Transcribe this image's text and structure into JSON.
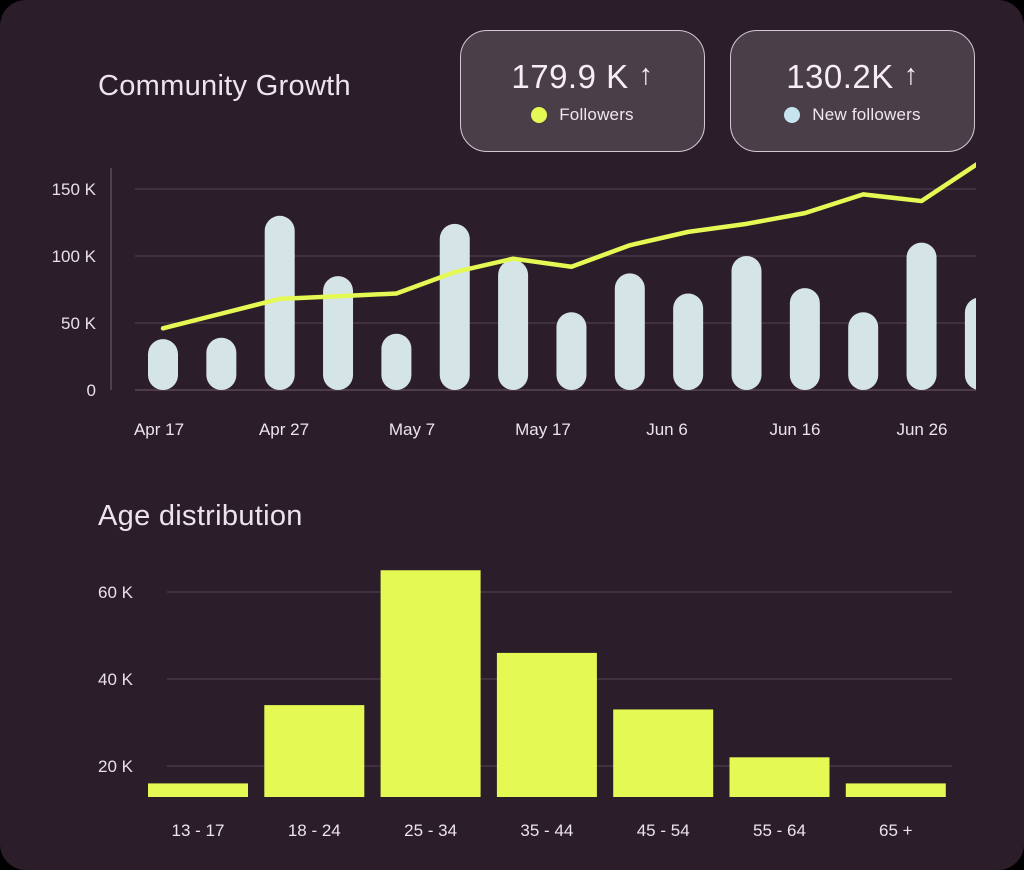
{
  "stat_cards": [
    {
      "value": "179.9 K",
      "trend": "↑",
      "label": "Followers",
      "dot_color": "#e5f954"
    },
    {
      "value": "130.2K",
      "trend": "↑",
      "label": "New followers",
      "dot_color": "#c7e3ee"
    }
  ],
  "colors": {
    "background": "#2c1d2a",
    "surface_card": "#4a3e48",
    "card_border": "#d5c6d1",
    "accent_yellow": "#e5f954",
    "accent_blue_bar": "#d5e4e7",
    "legend_blue_dot": "#c7e3ee",
    "text": "#ece3ee",
    "gridline": "#4e3d4c"
  },
  "chart_data": [
    {
      "id": "community-growth",
      "type": "bar",
      "subtype": "bar+line combo",
      "title": "Community Growth",
      "unit": "K",
      "x_tick_labels": [
        "Apr 17",
        "Apr 27",
        "May 7",
        "May 17",
        "Jun 6",
        "Jun 16",
        "Jun 26"
      ],
      "y_tick_values": [
        0,
        50,
        100,
        150
      ],
      "y_tick_labels": [
        "0",
        "50 K",
        "100 K",
        "150 K"
      ],
      "ylim": [
        0,
        170
      ],
      "grid": "horizontal",
      "legend_position": "top-right stat cards",
      "series": [
        {
          "name": "New followers",
          "type": "bar",
          "color": "#d5e4e7",
          "values_k": [
            38,
            39,
            130,
            85,
            42,
            124,
            97,
            58,
            87,
            72,
            100,
            76,
            58,
            110,
            69
          ],
          "note": "last bar clipped at right chart edge"
        },
        {
          "name": "Followers",
          "type": "line",
          "color": "#e5f954",
          "values_k": [
            46,
            57,
            68,
            70,
            72,
            88,
            98,
            92,
            108,
            118,
            124,
            132,
            146,
            141,
            170
          ]
        }
      ]
    },
    {
      "id": "age-distribution",
      "type": "bar",
      "title": "Age distribution",
      "unit": "K",
      "categories": [
        "13 - 17",
        "18 - 24",
        "25 - 34",
        "35 - 44",
        "45 - 54",
        "55 - 64",
        "65 +"
      ],
      "values_k": [
        16,
        34,
        65,
        46,
        33,
        22,
        16
      ],
      "bar_color": "#e5f954",
      "y_tick_values": [
        20,
        40,
        60
      ],
      "y_tick_labels": [
        "20 K",
        "40 K",
        "60 K"
      ],
      "ylim": [
        13,
        67
      ],
      "grid": "horizontal",
      "legend_position": "none"
    }
  ]
}
